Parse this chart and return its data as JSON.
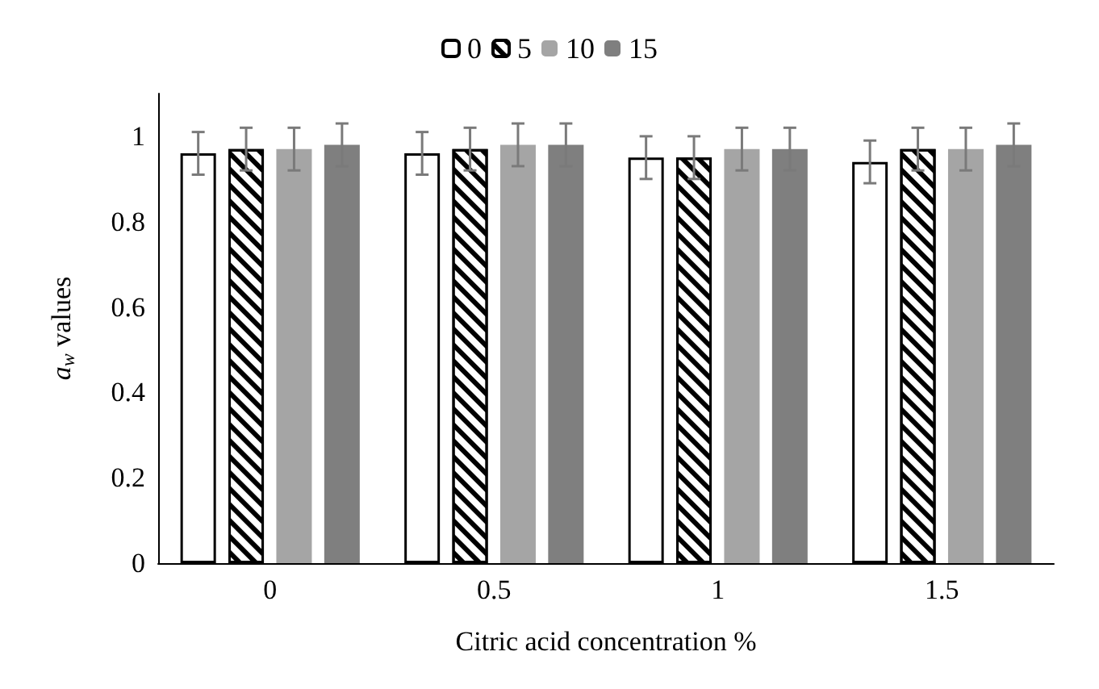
{
  "chart_data": {
    "type": "bar",
    "xlabel": "Citric acid concentration %",
    "ylabel": "a$_{w}$ values",
    "categories": [
      "0",
      "0.5",
      "1",
      "1.5"
    ],
    "series": [
      {
        "name": "0",
        "color": "#ffffff",
        "values": [
          0.96,
          0.96,
          0.95,
          0.94
        ],
        "errors": [
          0.05,
          0.05,
          0.05,
          0.05
        ]
      },
      {
        "name": "5",
        "color": "#000000",
        "values": [
          0.97,
          0.97,
          0.95,
          0.97
        ],
        "errors": [
          0.05,
          0.05,
          0.05,
          0.05
        ]
      },
      {
        "name": "10",
        "color": "#a5a5a5",
        "values": [
          0.97,
          0.98,
          0.97,
          0.97
        ],
        "errors": [
          0.05,
          0.05,
          0.05,
          0.05
        ]
      },
      {
        "name": "15",
        "color": "#7f7f7f",
        "values": [
          0.98,
          0.98,
          0.97,
          0.98
        ],
        "errors": [
          0.05,
          0.05,
          0.05,
          0.05
        ]
      }
    ],
    "ylim": [
      0,
      1.1
    ],
    "yticks": [
      0,
      0.2,
      0.4,
      0.6,
      0.8,
      1
    ],
    "grid": false,
    "legend": "top"
  }
}
